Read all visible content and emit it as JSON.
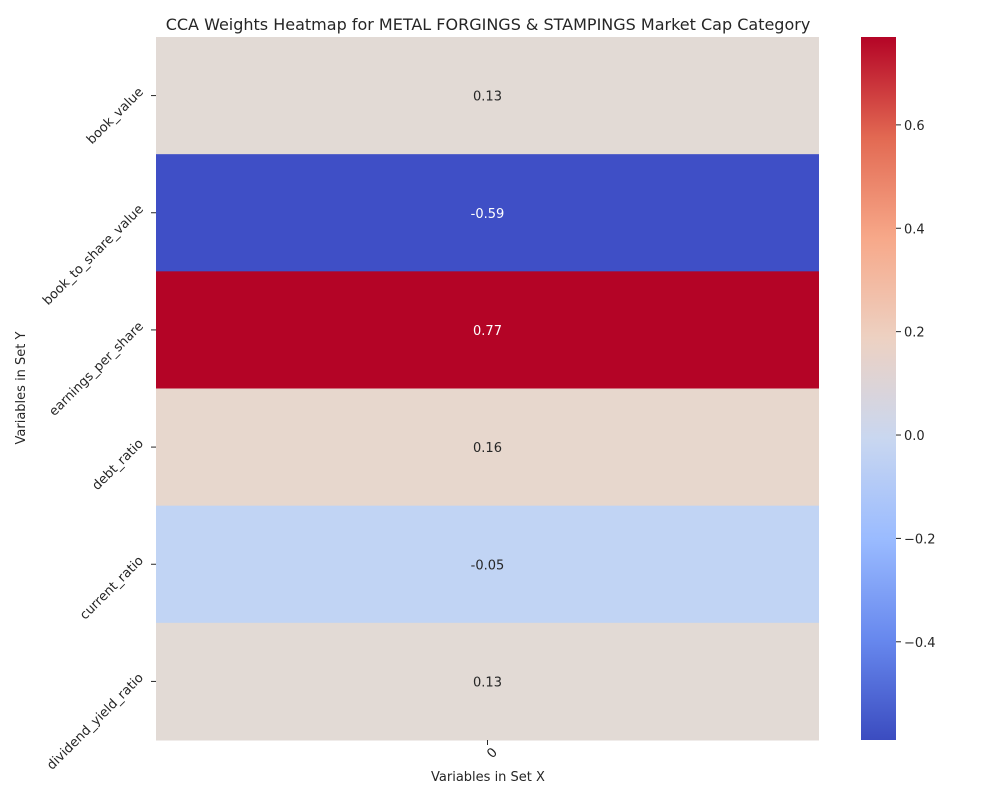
{
  "chart_data": {
    "type": "heatmap",
    "title": "CCA Weights Heatmap for METAL FORGINGS & STAMPINGS Market Cap Category",
    "xlabel": "Variables in Set X",
    "ylabel": "Variables in Set Y",
    "x_categories": [
      "0"
    ],
    "y_categories": [
      "book_value",
      "book_to_share_value",
      "earnings_per_share",
      "debt_ratio",
      "current_ratio",
      "dividend_yield_ratio"
    ],
    "values": [
      [
        0.13
      ],
      [
        -0.59
      ],
      [
        0.77
      ],
      [
        0.16
      ],
      [
        -0.05
      ],
      [
        0.13
      ]
    ],
    "value_labels": [
      "0.13",
      "-0.59",
      "0.77",
      "0.16",
      "-0.05",
      "0.13"
    ],
    "colormap": "coolwarm",
    "vmin": -0.59,
    "vmax": 0.77,
    "colorbar_ticks": [
      0.6,
      0.4,
      0.2,
      0.0,
      -0.2,
      -0.4
    ],
    "colorbar_tick_labels": [
      "0.6",
      "0.4",
      "0.2",
      "0.0",
      "−0.2",
      "−0.4"
    ],
    "cell_colors": [
      "#e2dad5",
      "#3f4fc6",
      "#b40426",
      "#e7d7cd",
      "#c1d4f4",
      "#e2dad5"
    ],
    "colorbar_stops": [
      "#3b4cc0",
      "#6788ee",
      "#9abbff",
      "#c9d7f0",
      "#edd1c2",
      "#f7a889",
      "#e26952",
      "#b40426"
    ],
    "legend": "colorbar-right"
  }
}
